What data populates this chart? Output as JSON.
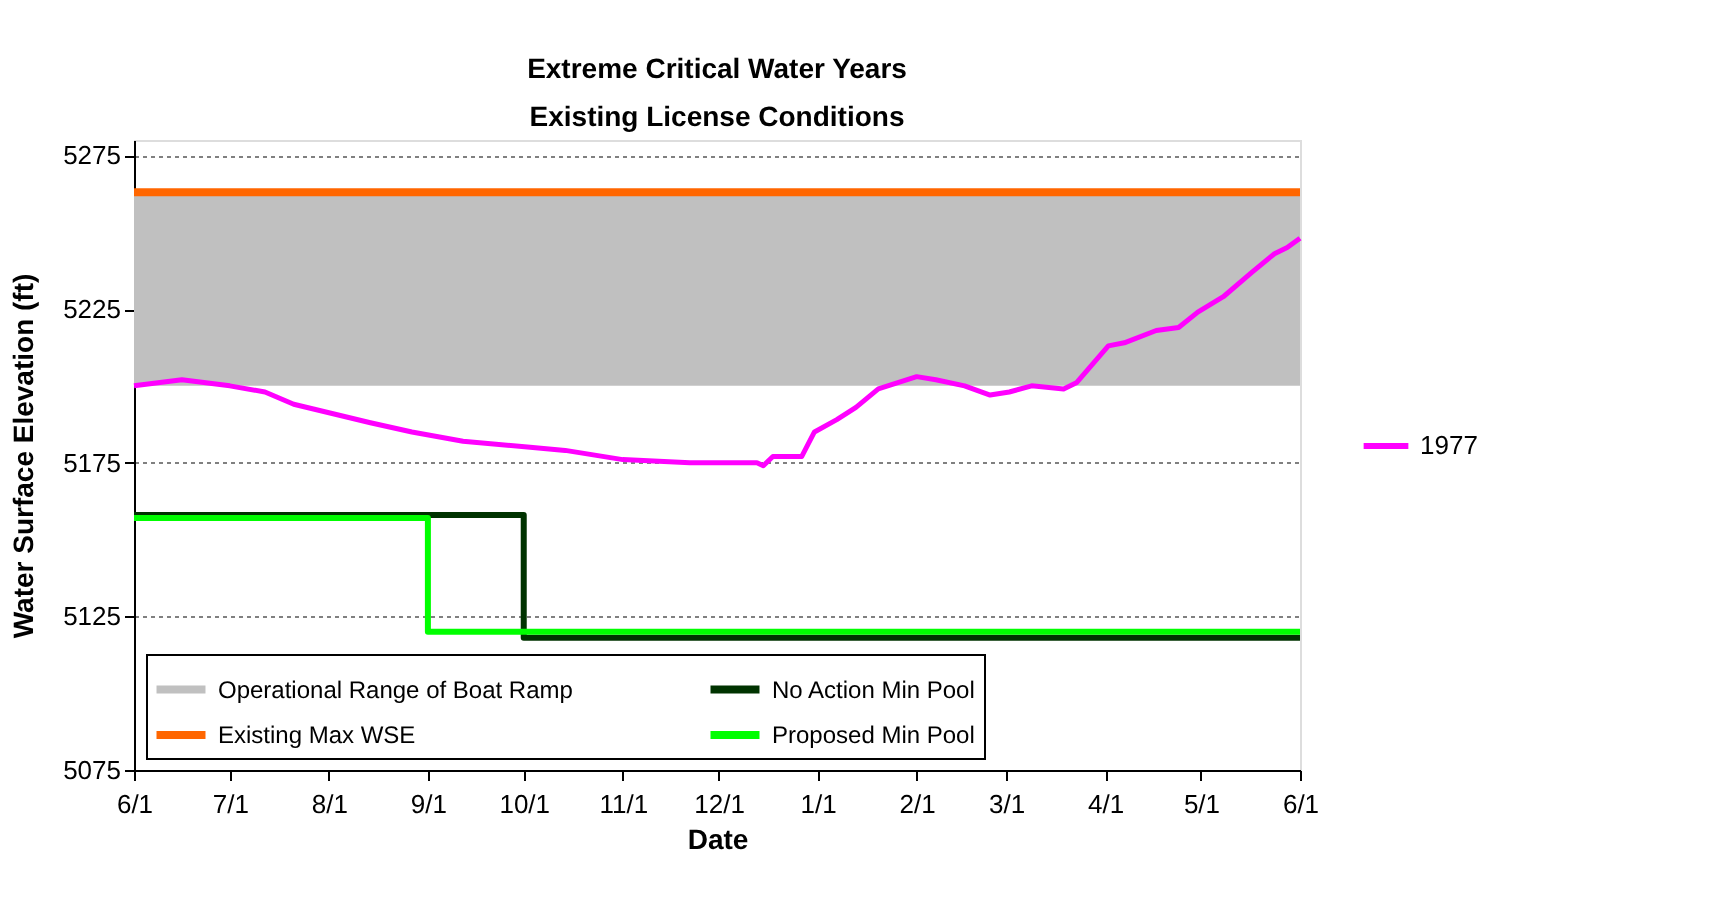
{
  "chart_data": {
    "type": "line",
    "title": "Extreme Critical Water Years",
    "subtitle": "Existing License Conditions",
    "xlabel": "Date",
    "ylabel": "Water Surface Elevation (ft)",
    "xlim": [
      "1976-06-01",
      "1977-06-01"
    ],
    "xticks": [
      {
        "value": "1976-06-01",
        "label": "6/1"
      },
      {
        "value": "1976-07-01",
        "label": "7/1"
      },
      {
        "value": "1976-08-01",
        "label": "8/1"
      },
      {
        "value": "1976-09-01",
        "label": "9/1"
      },
      {
        "value": "1976-10-01",
        "label": "10/1"
      },
      {
        "value": "1976-11-01",
        "label": "11/1"
      },
      {
        "value": "1976-12-01",
        "label": "12/1"
      },
      {
        "value": "1977-01-01",
        "label": "1/1"
      },
      {
        "value": "1977-02-01",
        "label": "2/1"
      },
      {
        "value": "1977-03-01",
        "label": "3/1"
      },
      {
        "value": "1977-04-01",
        "label": "4/1"
      },
      {
        "value": "1977-05-01",
        "label": "5/1"
      },
      {
        "value": "1977-06-01",
        "label": "6/1"
      }
    ],
    "ylim": [
      5075,
      5280
    ],
    "yticks": [
      5075,
      5125,
      5175,
      5225,
      5275
    ],
    "grid": "y",
    "legend": "bottom",
    "bands": [
      {
        "axis": "y",
        "from": 5200,
        "to": 5263,
        "label": "Operational Range of Boat Ramp",
        "color": "#c0c0c0"
      }
    ],
    "ref_lines": [
      {
        "axis": "y",
        "value": 5263,
        "label": "Existing Max WSE",
        "color": "#ff6600"
      }
    ],
    "series": [
      {
        "name": "No Action Min Pool",
        "type": "step",
        "color": "#003300",
        "x": [
          "1976-06-01",
          "1976-10-01",
          "1977-06-01"
        ],
        "values": [
          5158,
          5118,
          5118
        ]
      },
      {
        "name": "Proposed Min Pool",
        "type": "step",
        "color": "#00ff00",
        "x": [
          "1976-06-01",
          "1976-09-01",
          "1977-06-01"
        ],
        "values": [
          5157,
          5120,
          5120
        ]
      },
      {
        "name": "1977",
        "type": "line",
        "color": "#ff00ff",
        "x": [
          "1976-06-01",
          "1976-06-16",
          "1976-07-01",
          "1976-07-12",
          "1976-07-21",
          "1976-08-02",
          "1976-08-14",
          "1976-08-27",
          "1976-09-12",
          "1976-10-03",
          "1976-10-14",
          "1976-11-01",
          "1976-11-22",
          "1976-12-03",
          "1976-12-13",
          "1976-12-15",
          "1976-12-18",
          "1976-12-27",
          "1976-12-31",
          "1977-01-07",
          "1977-01-13",
          "1977-01-20",
          "1977-02-01",
          "1977-02-07",
          "1977-02-16",
          "1977-02-24",
          "1977-03-02",
          "1977-03-09",
          "1977-03-19",
          "1977-03-23",
          "1977-04-02",
          "1977-04-07",
          "1977-04-17",
          "1977-04-24",
          "1977-04-30",
          "1977-05-08",
          "1977-05-17",
          "1977-05-24",
          "1977-05-28",
          "1977-06-01"
        ],
        "values": [
          5200,
          5202,
          5200,
          5198,
          5194,
          5191,
          5188,
          5185,
          5182,
          5180,
          5179,
          5176,
          5175,
          5175,
          5175,
          5174,
          5177,
          5177,
          5185,
          5189,
          5193,
          5199,
          5203,
          5202,
          5200,
          5197,
          5198,
          5200,
          5199,
          5201,
          5213,
          5214,
          5218,
          5219,
          5224,
          5229,
          5237,
          5243,
          5245,
          5248
        ]
      }
    ]
  }
}
